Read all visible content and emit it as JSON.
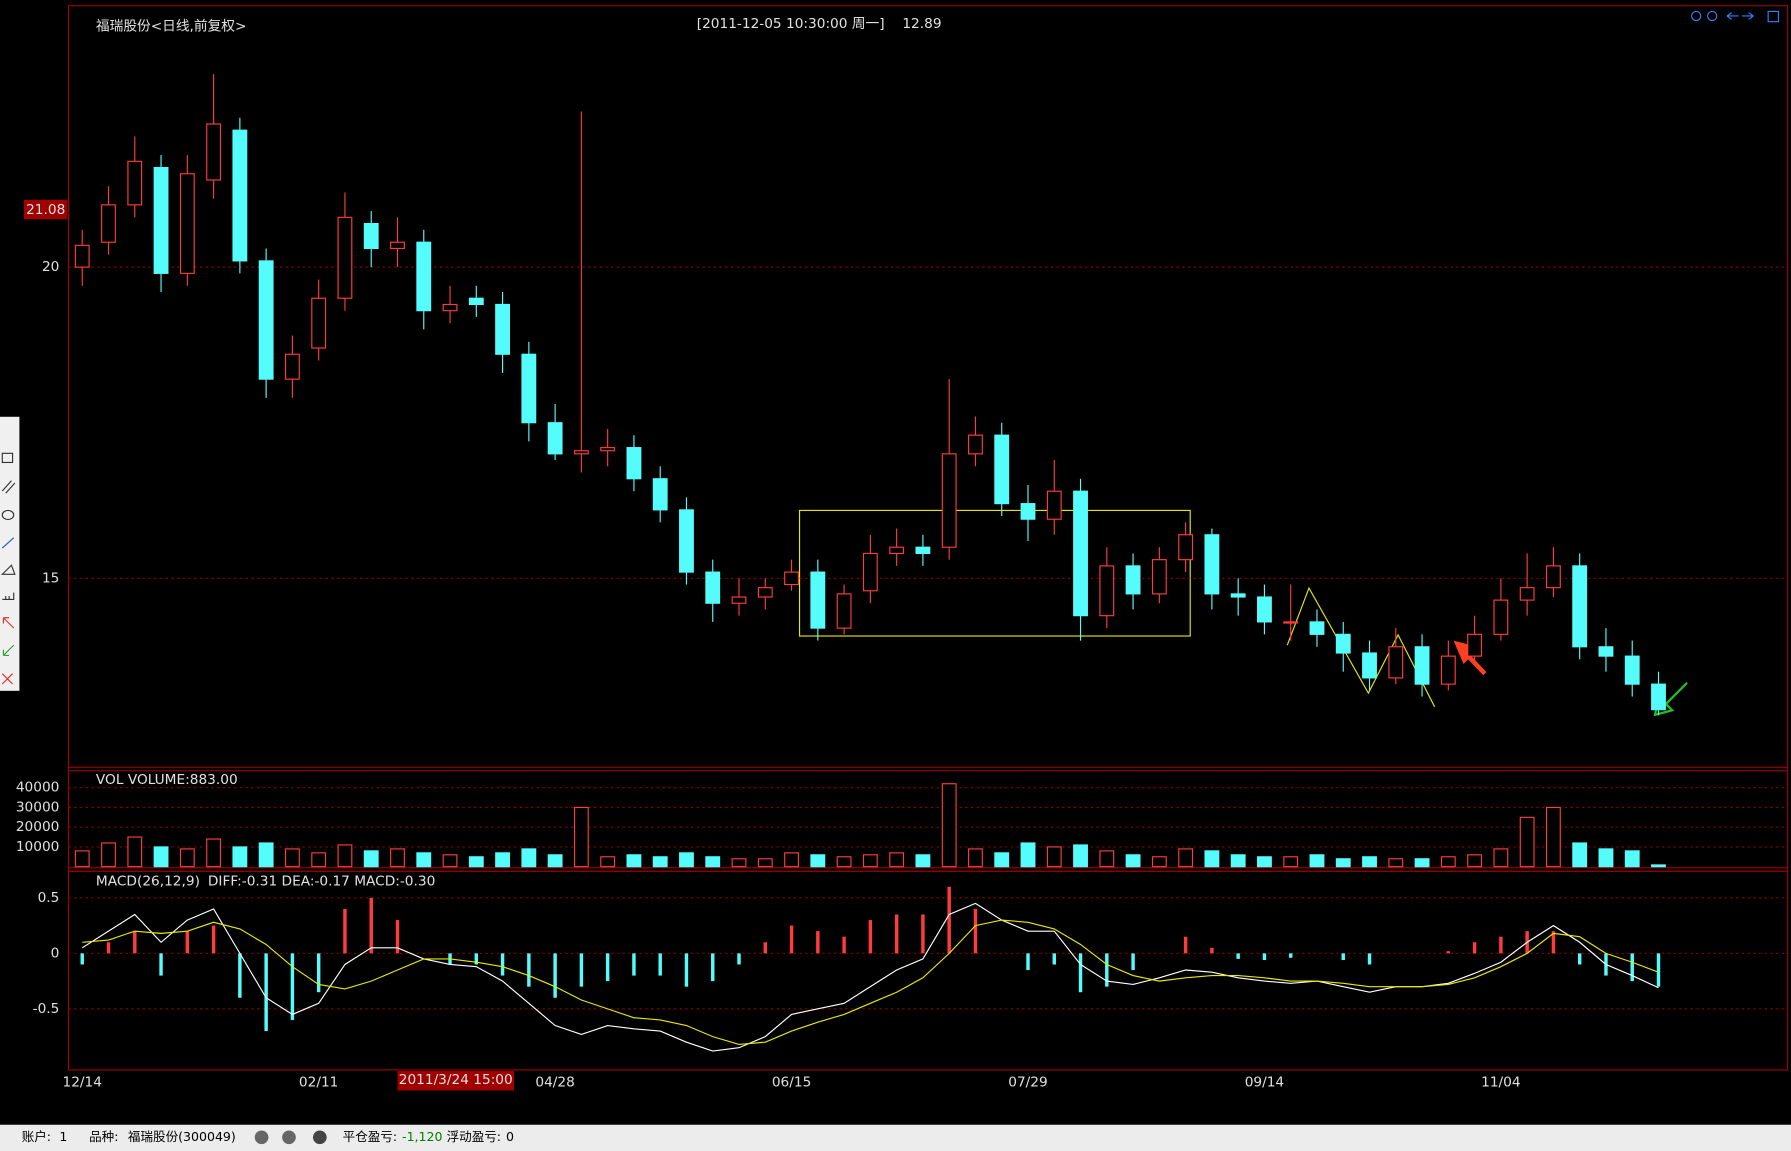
{
  "chart_data": [
    {
      "type": "candlestick",
      "title": "福瑞股份<日线,前复权>",
      "subtitle": "[2011-12-05  10:30:00 周一]",
      "last_price": "12.89",
      "cursor_price": "21.08",
      "cursor_time": "2011/3/24 15:00",
      "categories": [
        "12/14",
        null,
        null,
        null,
        null,
        null,
        null,
        null,
        null,
        "02/11",
        null,
        null,
        null,
        null,
        null,
        null,
        null,
        null,
        "04/28",
        null,
        null,
        null,
        null,
        null,
        null,
        null,
        null,
        "06/15",
        null,
        null,
        null,
        null,
        null,
        null,
        null,
        null,
        "07/29",
        null,
        null,
        null,
        null,
        null,
        null,
        null,
        null,
        "09/14",
        null,
        null,
        null,
        null,
        null,
        null,
        null,
        null,
        "11/04",
        null,
        null,
        null,
        null,
        null,
        null
      ],
      "open": [
        20.0,
        20.4,
        21.0,
        21.6,
        19.9,
        21.4,
        22.2,
        20.1,
        18.2,
        18.7,
        19.5,
        20.7,
        20.3,
        20.4,
        19.3,
        19.5,
        19.4,
        18.6,
        17.5,
        17.0,
        17.05,
        17.1,
        16.6,
        16.1,
        15.1,
        14.6,
        14.7,
        14.9,
        15.1,
        14.2,
        14.8,
        15.4,
        15.5,
        15.5,
        17.0,
        17.3,
        16.2,
        15.95,
        16.4,
        14.4,
        15.2,
        14.75,
        15.3,
        15.7,
        14.75,
        14.7,
        14.3,
        14.3,
        14.1,
        13.8,
        13.4,
        13.9,
        13.3,
        13.75,
        14.1,
        14.65,
        14.85,
        15.2,
        13.9,
        13.75,
        13.3
      ],
      "high": [
        20.6,
        21.3,
        22.1,
        21.8,
        21.8,
        23.1,
        22.4,
        20.3,
        18.9,
        19.8,
        21.2,
        20.9,
        20.8,
        20.6,
        19.7,
        19.7,
        19.6,
        18.8,
        17.8,
        22.5,
        17.4,
        17.3,
        16.8,
        16.3,
        15.3,
        15.0,
        15.0,
        15.3,
        15.3,
        14.9,
        15.7,
        15.8,
        15.7,
        18.2,
        17.6,
        17.5,
        16.5,
        16.9,
        16.6,
        15.5,
        15.4,
        15.5,
        15.9,
        15.8,
        15.0,
        14.9,
        14.9,
        14.5,
        14.3,
        14.0,
        14.2,
        14.1,
        14.0,
        14.4,
        15.0,
        15.4,
        15.5,
        15.4,
        14.2,
        14.0,
        13.5
      ],
      "low": [
        19.7,
        20.2,
        20.8,
        19.6,
        19.7,
        21.1,
        19.9,
        17.9,
        17.9,
        18.5,
        19.3,
        20.0,
        20.0,
        19.0,
        19.1,
        19.2,
        18.3,
        17.2,
        16.9,
        16.7,
        16.8,
        16.4,
        15.9,
        14.9,
        14.3,
        14.4,
        14.5,
        14.8,
        14.0,
        14.1,
        14.6,
        15.2,
        15.2,
        15.3,
        16.8,
        16.0,
        15.6,
        15.7,
        14.0,
        14.2,
        14.5,
        14.6,
        15.1,
        14.5,
        14.4,
        14.1,
        14.0,
        13.9,
        13.5,
        13.2,
        13.3,
        13.1,
        13.2,
        13.6,
        14.0,
        14.4,
        14.7,
        13.7,
        13.5,
        13.1,
        12.8
      ],
      "close": [
        20.35,
        21.0,
        21.7,
        19.9,
        21.5,
        22.3,
        20.1,
        18.2,
        18.6,
        19.5,
        20.8,
        20.3,
        20.4,
        19.3,
        19.4,
        19.4,
        18.6,
        17.5,
        17.0,
        17.05,
        17.1,
        16.6,
        16.1,
        15.1,
        14.6,
        14.7,
        14.85,
        15.1,
        14.2,
        14.75,
        15.4,
        15.5,
        15.4,
        17.0,
        17.3,
        16.2,
        15.95,
        16.4,
        14.4,
        15.2,
        14.75,
        15.3,
        15.7,
        14.75,
        14.7,
        14.3,
        14.3,
        14.1,
        13.8,
        13.4,
        13.9,
        13.3,
        13.75,
        14.1,
        14.65,
        14.85,
        15.2,
        13.9,
        13.75,
        13.3,
        12.89
      ],
      "up_color": "#ff3c3c",
      "down_color": "#54fcfc",
      "ylim": [
        12.0,
        24.2
      ],
      "yticks": [
        15,
        20
      ],
      "grid": true
    },
    {
      "type": "bar",
      "title": "VOL  VOLUME:883.00",
      "values": [
        8000,
        12000,
        15000,
        10000,
        9000,
        14000,
        10000,
        12000,
        9000,
        7000,
        11000,
        8000,
        9000,
        7000,
        6000,
        5000,
        7000,
        9000,
        6000,
        30000,
        5000,
        6000,
        5000,
        7000,
        5000,
        4000,
        4000,
        7000,
        6000,
        5000,
        6000,
        7000,
        6000,
        42000,
        9000,
        7000,
        12000,
        10000,
        11000,
        8000,
        6000,
        5000,
        9000,
        8000,
        6000,
        5000,
        5000,
        6000,
        4000,
        5000,
        4000,
        4000,
        5000,
        6000,
        9000,
        25000,
        30000,
        12000,
        9000,
        8000,
        883
      ],
      "ylim": [
        0,
        48000
      ],
      "yticks": [
        10000,
        20000,
        30000,
        40000
      ],
      "grid": true
    },
    {
      "type": "macd",
      "title": "MACD(26,12,9)",
      "subtitle": "DIFF:-0.31 DEA:-0.17 MACD:-0.30",
      "series": [
        {
          "color": "#ffffff",
          "values": [
            0.05,
            0.2,
            0.35,
            0.1,
            0.3,
            0.4,
            0.0,
            -0.4,
            -0.55,
            -0.45,
            -0.1,
            0.05,
            0.05,
            -0.05,
            -0.1,
            -0.12,
            -0.25,
            -0.45,
            -0.65,
            -0.73,
            -0.65,
            -0.68,
            -0.7,
            -0.8,
            -0.88,
            -0.85,
            -0.75,
            -0.55,
            -0.5,
            -0.45,
            -0.3,
            -0.15,
            -0.05,
            0.35,
            0.45,
            0.3,
            0.2,
            0.2,
            -0.1,
            -0.25,
            -0.28,
            -0.22,
            -0.15,
            -0.17,
            -0.22,
            -0.25,
            -0.27,
            -0.25,
            -0.3,
            -0.35,
            -0.3,
            -0.3,
            -0.27,
            -0.18,
            -0.08,
            0.1,
            0.25,
            0.1,
            -0.1,
            -0.2,
            -0.31
          ]
        },
        {
          "color": "#e8e800",
          "values": [
            0.1,
            0.12,
            0.2,
            0.18,
            0.2,
            0.28,
            0.22,
            0.08,
            -0.12,
            -0.28,
            -0.32,
            -0.25,
            -0.15,
            -0.05,
            -0.05,
            -0.08,
            -0.12,
            -0.2,
            -0.3,
            -0.42,
            -0.5,
            -0.58,
            -0.6,
            -0.65,
            -0.75,
            -0.82,
            -0.8,
            -0.7,
            -0.62,
            -0.55,
            -0.45,
            -0.35,
            -0.22,
            0.0,
            0.25,
            0.3,
            0.28,
            0.22,
            0.08,
            -0.1,
            -0.2,
            -0.25,
            -0.22,
            -0.2,
            -0.2,
            -0.22,
            -0.25,
            -0.25,
            -0.27,
            -0.3,
            -0.3,
            -0.3,
            -0.28,
            -0.22,
            -0.12,
            0.0,
            0.18,
            0.15,
            0.0,
            -0.08,
            -0.17
          ]
        }
      ],
      "histogram": [
        -0.1,
        0.1,
        0.2,
        -0.2,
        0.2,
        0.25,
        -0.4,
        -0.7,
        -0.6,
        -0.35,
        0.4,
        0.5,
        0.3,
        0.0,
        -0.1,
        -0.1,
        -0.2,
        -0.3,
        -0.4,
        -0.3,
        -0.25,
        -0.2,
        -0.2,
        -0.3,
        -0.25,
        -0.1,
        0.1,
        0.25,
        0.2,
        0.15,
        0.3,
        0.35,
        0.35,
        0.6,
        0.4,
        0.0,
        -0.15,
        -0.1,
        -0.35,
        -0.3,
        -0.15,
        0.0,
        0.15,
        0.05,
        -0.05,
        -0.06,
        -0.04,
        0.0,
        -0.06,
        -0.1,
        0.0,
        0.0,
        0.02,
        0.1,
        0.15,
        0.2,
        0.2,
        -0.1,
        -0.2,
        -0.25,
        -0.3
      ],
      "ylim": [
        -1.05,
        0.75
      ],
      "yticks": [
        -0.5,
        0,
        0.5
      ],
      "grid": true
    }
  ],
  "status_bar": {
    "account_label": "账户:",
    "account": "1",
    "symbol_label": "品种:",
    "symbol": "福瑞股份(300049)",
    "closed_pl_label": "平仓盈亏:",
    "closed_pl": "-1,120",
    "float_pl_label": "浮动盈亏:",
    "float_pl": "0"
  }
}
